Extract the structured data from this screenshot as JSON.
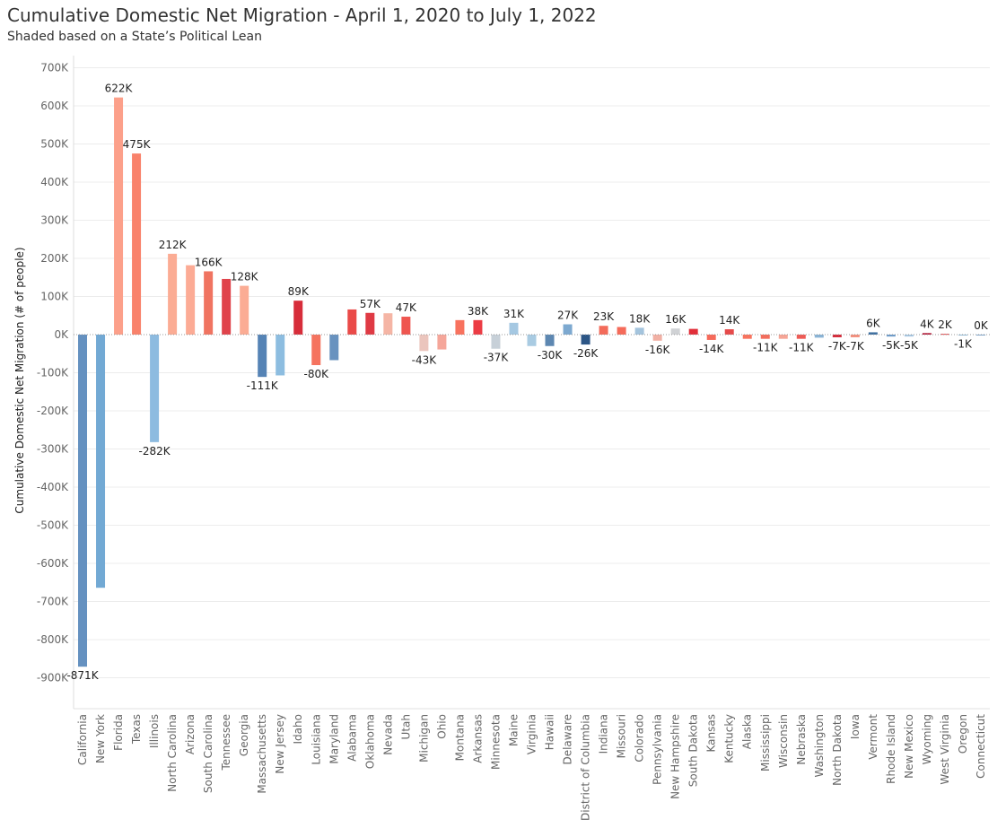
{
  "title": "Cumulative Domestic Net Migration - April 1, 2020 to July 1, 2022",
  "subtitle": "Shaded based on a State’s Political Lean",
  "chart_data": {
    "type": "bar",
    "ylabel": "Cumulative Domestic Net Migration (# of people)",
    "xlabel": "",
    "ylim": [
      -1000000,
      750000
    ],
    "yticks": [
      700000,
      600000,
      500000,
      400000,
      300000,
      200000,
      100000,
      0,
      -100000,
      -200000,
      -300000,
      -400000,
      -500000,
      -600000,
      -700000,
      -800000,
      -900000
    ],
    "ytick_labels": [
      "700K",
      "600K",
      "500K",
      "400K",
      "300K",
      "200K",
      "100K",
      "0K",
      "-100K",
      "-200K",
      "-300K",
      "-400K",
      "-500K",
      "-600K",
      "-700K",
      "-800K",
      "-900K"
    ],
    "grid": true,
    "categories": [
      "California",
      "New York",
      "Florida",
      "Texas",
      "Illinois",
      "North Carolina",
      "Arizona",
      "South Carolina",
      "Tennessee",
      "Georgia",
      "Massachusetts",
      "New Jersey",
      "Idaho",
      "Louisiana",
      "Maryland",
      "Alabama",
      "Oklahoma",
      "Nevada",
      "Utah",
      "Michigan",
      "Ohio",
      "Montana",
      "Arkansas",
      "Minnesota",
      "Maine",
      "Virginia",
      "Hawaii",
      "Delaware",
      "District of Columbia",
      "Indiana",
      "Missouri",
      "Colorado",
      "Pennsylvania",
      "New Hampshire",
      "South Dakota",
      "Kansas",
      "Kentucky",
      "Alaska",
      "Mississippi",
      "Wisconsin",
      "Nebraska",
      "Washington",
      "North Dakota",
      "Iowa",
      "Vermont",
      "Rhode Island",
      "New Mexico",
      "Wyoming",
      "West Virginia",
      "Oregon",
      "Connecticut"
    ],
    "values": [
      -871000,
      -664000,
      622000,
      475000,
      -282000,
      212000,
      182000,
      166000,
      146000,
      128000,
      -111000,
      -107000,
      89000,
      -80000,
      -67000,
      66000,
      57000,
      56000,
      47000,
      -43000,
      -39000,
      38000,
      38000,
      -37000,
      31000,
      -30000,
      -30000,
      27000,
      -26000,
      23000,
      20000,
      18000,
      -16000,
      16000,
      15000,
      -14000,
      14000,
      -11000,
      -11000,
      -11000,
      -11000,
      -8000,
      -7000,
      -7000,
      6000,
      -5000,
      -5000,
      4000,
      2000,
      -1000,
      0
    ],
    "data_labels": [
      "-871K",
      "",
      "622K",
      "475K",
      "-282K",
      "212K",
      "",
      "166K",
      "",
      "128K",
      "-111K",
      "",
      "89K",
      "-80K",
      "",
      "",
      "57K",
      "",
      "47K",
      "-43K",
      "",
      "",
      "38K",
      "-37K",
      "31K",
      "",
      "-30K",
      "27K",
      "-26K",
      "23K",
      "",
      "18K",
      "-16K",
      "16K",
      "",
      "-14K",
      "14K",
      "",
      "-11K",
      "",
      "-11K",
      "",
      "-7K",
      "-7K",
      "6K",
      "-5K",
      "-5K",
      "4K",
      "2K",
      "-1K",
      "0K"
    ],
    "colors": [
      "#6591c0",
      "#72a9d4",
      "#fca08a",
      "#f9826b",
      "#8dbbe0",
      "#fbac94",
      "#fcab95",
      "#f07461",
      "#e0434b",
      "#fbac94",
      "#5583b5",
      "#8dbde0",
      "#d72d3a",
      "#f5735f",
      "#6892bf",
      "#ea4a48",
      "#df3a44",
      "#f5b5a5",
      "#ef5650",
      "#ebc5bd",
      "#f5a69a",
      "#f8725e",
      "#ec3c44",
      "#c7d0d8",
      "#a5c8e2",
      "#a9cbe2",
      "#5d87b1",
      "#7da9d0",
      "#2c5686",
      "#f36b5a",
      "#f56b5a",
      "#a4c4dd",
      "#f1b0a4",
      "#d0d2d5",
      "#e12e39",
      "#f66a5a",
      "#e64a4a",
      "#f8735e",
      "#f36d5c",
      "#f6a596",
      "#ee5b55",
      "#8ab4d6",
      "#d42b3a",
      "#f4907e",
      "#3e6fa0",
      "#6d9ccb",
      "#a8c8e2",
      "#b31b38",
      "#df3f44",
      "#8dbad8",
      "#79a3cc"
    ]
  }
}
